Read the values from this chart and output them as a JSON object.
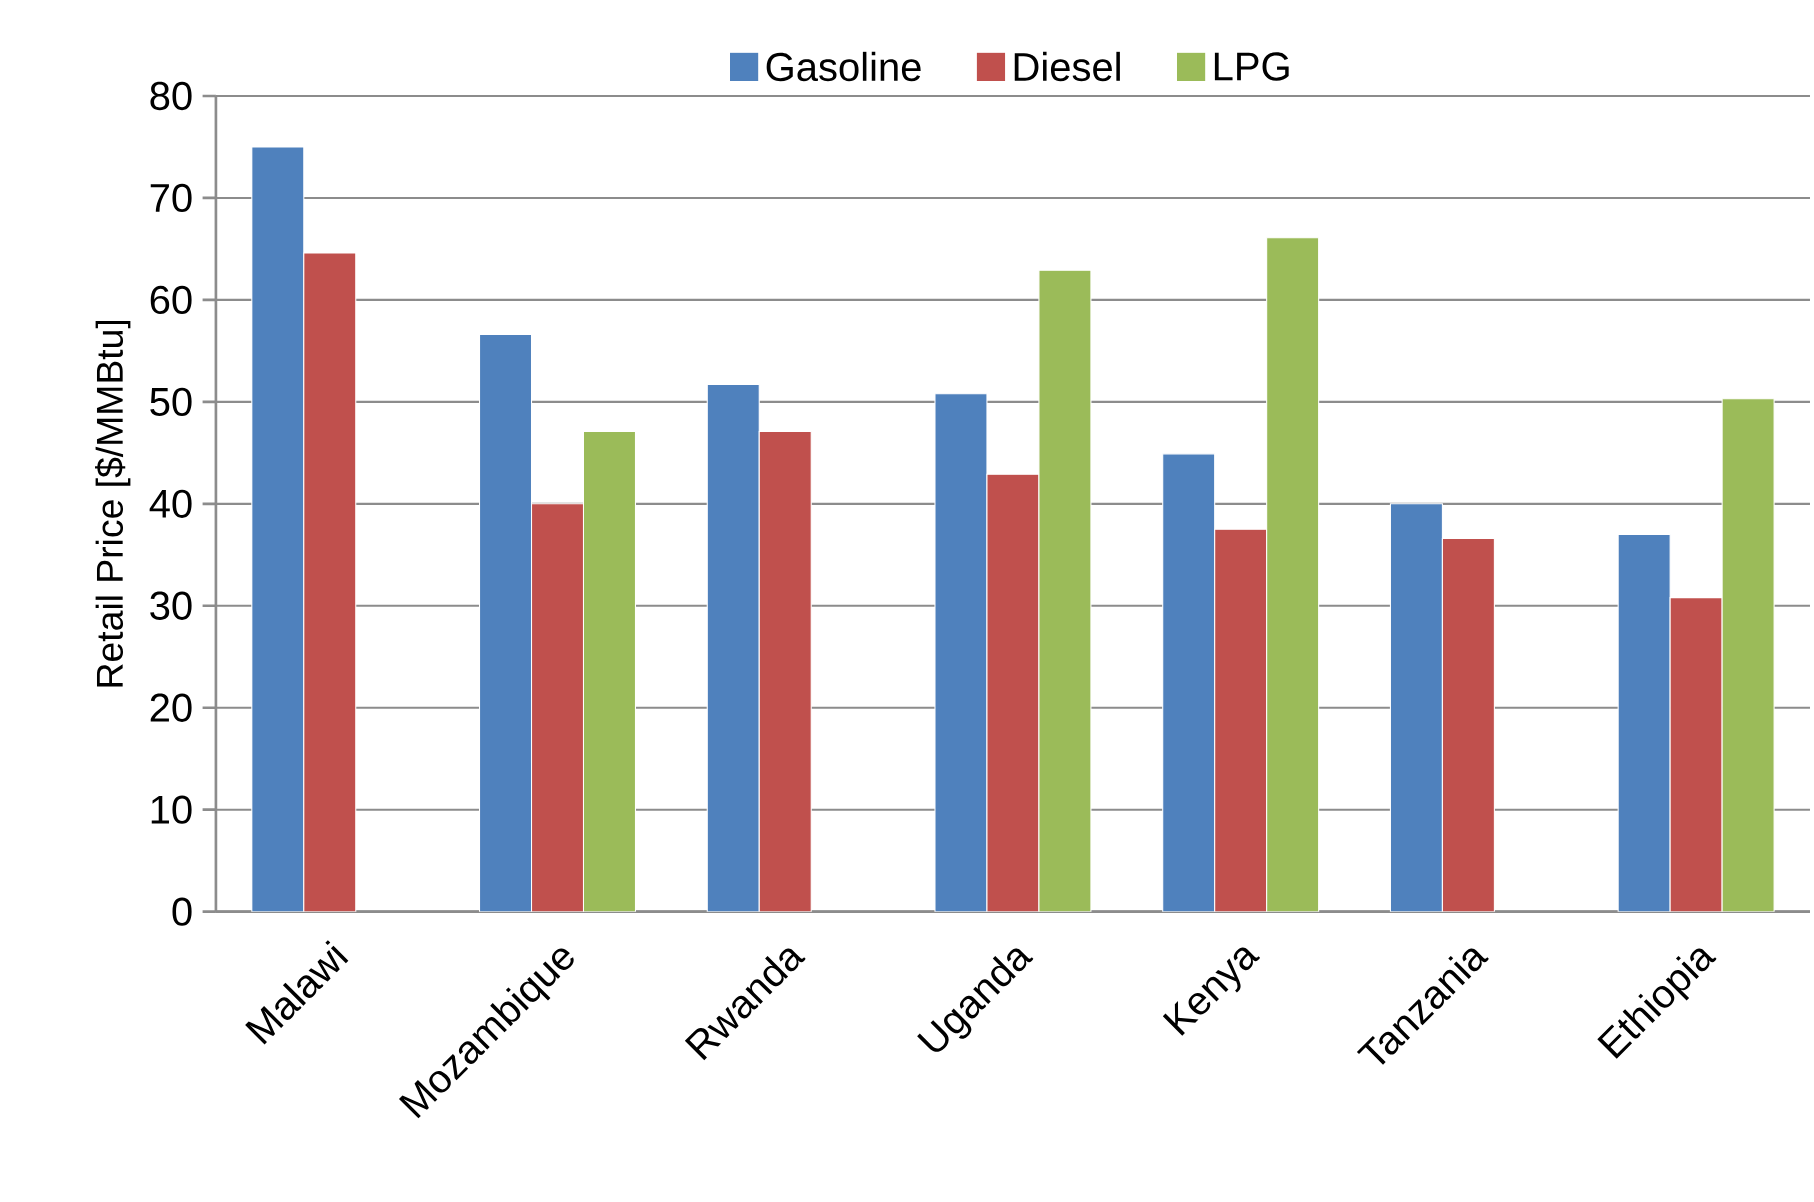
{
  "chart_data": {
    "type": "bar",
    "ylabel": "Retail Price [$/MMBtu]",
    "categories": [
      "Malawi",
      "Mozambique",
      "Rwanda",
      "Uganda",
      "Kenya",
      "Tanzania",
      "Ethiopia"
    ],
    "series": [
      {
        "name": "Gasoline",
        "color": "#4f81bd",
        "values": [
          75,
          56.6,
          51.7,
          50.8,
          44.9,
          40.0,
          37.0
        ]
      },
      {
        "name": "Diesel",
        "color": "#c0504d",
        "values": [
          64.6,
          40.0,
          47.1,
          42.9,
          37.5,
          36.6,
          30.8
        ]
      },
      {
        "name": "LPG",
        "color": "#9bbb59",
        "values": [
          null,
          47.1,
          null,
          62.9,
          66.1,
          null,
          50.3
        ]
      }
    ],
    "ylim": [
      0,
      80
    ],
    "yticks": [
      0,
      10,
      20,
      30,
      40,
      50,
      60,
      70,
      80
    ],
    "grid": "y",
    "legend": "top"
  }
}
